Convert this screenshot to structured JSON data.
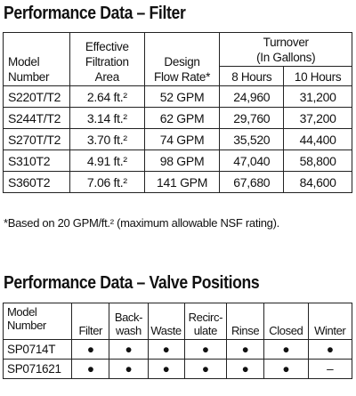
{
  "filter_section": {
    "title": "Performance Data – Filter",
    "headers": {
      "model": [
        "Model",
        "Number"
      ],
      "area": [
        "Effective",
        "Filtration",
        "Area"
      ],
      "flow": [
        "Design",
        "Flow Rate*"
      ],
      "turnover": [
        "Turnover",
        "(In Gallons)"
      ],
      "hours8": "8 Hours",
      "hours10": "10 Hours"
    },
    "rows": [
      {
        "model": "S220T/T2",
        "area": "2.64 ft.²",
        "flow": "52 GPM",
        "h8": "24,960",
        "h10": "31,200"
      },
      {
        "model": "S244T/T2",
        "area": "3.14 ft.²",
        "flow": "62 GPM",
        "h8": "29,760",
        "h10": "37,200"
      },
      {
        "model": "S270T/T2",
        "area": "3.70 ft.²",
        "flow": "74 GPM",
        "h8": "35,520",
        "h10": "44,400"
      },
      {
        "model": "S310T2",
        "area": "4.91 ft.²",
        "flow": "98 GPM",
        "h8": "47,040",
        "h10": "58,800"
      },
      {
        "model": "S360T2",
        "area": "7.06 ft.²",
        "flow": "141 GPM",
        "h8": "67,680",
        "h10": "84,600"
      }
    ],
    "footnote": "*Based on 20 GPM/ft.² (maximum allowable NSF rating)."
  },
  "valve_section": {
    "title": "Performance Data – Valve Positions",
    "headers": {
      "model": [
        "Model",
        "Number"
      ],
      "filter": "Filter",
      "backwash": [
        "Back-",
        "wash"
      ],
      "waste": "Waste",
      "recirculate": [
        "Recirc-",
        "ulate"
      ],
      "rinse": "Rinse",
      "closed": "Closed",
      "winter": "Winter"
    },
    "rows": [
      {
        "model": "SP0714T",
        "filter": "●",
        "backwash": "●",
        "waste": "●",
        "recirculate": "●",
        "rinse": "●",
        "closed": "●",
        "winter": "●"
      },
      {
        "model": "SP071621",
        "filter": "●",
        "backwash": "●",
        "waste": "●",
        "recirculate": "●",
        "rinse": "●",
        "closed": "●",
        "winter": "–"
      }
    ]
  }
}
